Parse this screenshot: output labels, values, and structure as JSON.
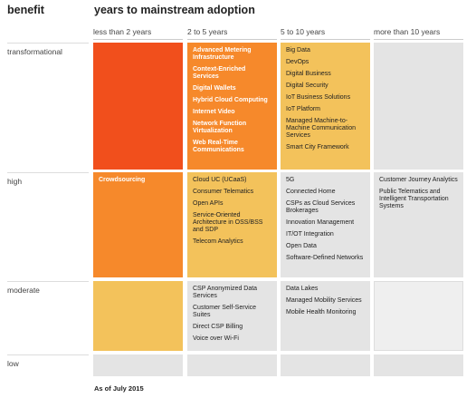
{
  "header": {
    "benefit": "benefit",
    "title": "years to mainstream adoption"
  },
  "columns": [
    "less than 2 years",
    "2 to 5 years",
    "5 to 10 years",
    "more than 10 years"
  ],
  "rows": [
    {
      "label": "transformational",
      "cells": [
        [],
        [
          "Advanced Metering Infrastructure",
          "Context-Enriched Services",
          "Digital Wallets",
          "Hybrid Cloud Computing",
          "Internet Video",
          "Network Function Virtualization",
          "Web Real-Time Communications"
        ],
        [
          "Big Data",
          "DevOps",
          "Digital Business",
          "Digital Security",
          "IoT Business Solutions",
          "IoT Platform",
          "Managed Machine-to-Machine Communication Services",
          "Smart City Framework"
        ],
        []
      ]
    },
    {
      "label": "high",
      "cells": [
        [
          "Crowdsourcing"
        ],
        [
          "Cloud UC (UCaaS)",
          "Consumer Telematics",
          "Open APIs",
          "Service-Oriented Architecture in OSS/BSS and SDP",
          "Telecom Analytics"
        ],
        [
          "5G",
          "Connected Home",
          "CSPs as Cloud Services Brokerages",
          "Innovation Management",
          "IT/OT Integration",
          "Open Data",
          "Software-Defined Networks"
        ],
        [
          "Customer Journey Analytics",
          "Public Telematics and Intelligent Transportation Systems"
        ]
      ]
    },
    {
      "label": "moderate",
      "cells": [
        [],
        [
          "CSP Anonymized Data Services",
          "Customer Self-Service Suites",
          "Direct CSP Billing",
          "Voice over Wi-Fi"
        ],
        [
          "Data Lakes",
          "Managed Mobility Services",
          "Mobile Health Monitoring"
        ],
        []
      ]
    },
    {
      "label": "low",
      "cells": [
        [],
        [],
        [],
        []
      ]
    }
  ],
  "footer": "As of July 2015"
}
